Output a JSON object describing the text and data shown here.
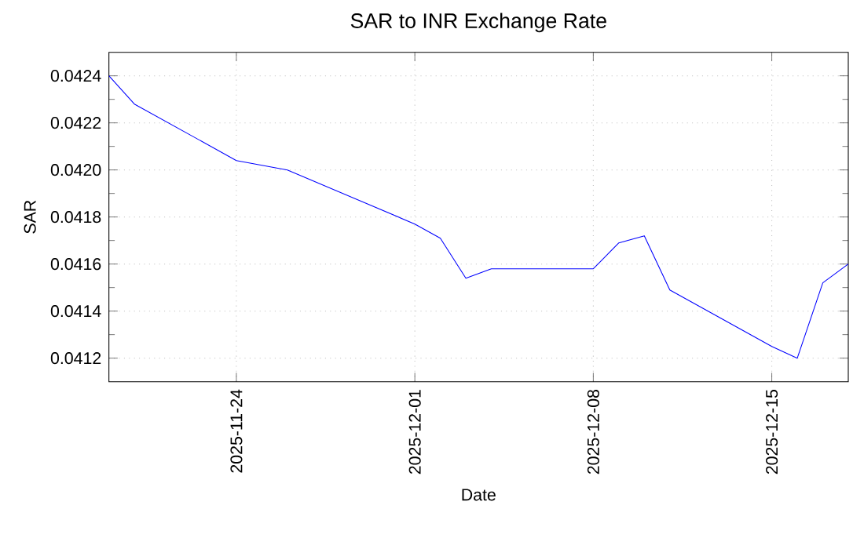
{
  "chart_data": {
    "type": "line",
    "title": "SAR to INR Exchange Rate",
    "xlabel": "Date",
    "ylabel": "SAR",
    "x": [
      "2025-11-19",
      "2025-11-20",
      "2025-11-24",
      "2025-11-26",
      "2025-12-01",
      "2025-12-02",
      "2025-12-03",
      "2025-12-04",
      "2025-12-08",
      "2025-12-09",
      "2025-12-10",
      "2025-12-11",
      "2025-12-15",
      "2025-12-16",
      "2025-12-17",
      "2025-12-18"
    ],
    "series": [
      {
        "color": "#0000ff",
        "values": [
          0.0424,
          0.04228,
          0.04204,
          0.042,
          0.04177,
          0.04171,
          0.04154,
          0.04158,
          0.04158,
          0.04169,
          0.04172,
          0.04149,
          0.04125,
          0.0412,
          0.04152,
          0.0416
        ]
      }
    ],
    "xlim": [
      "2025-11-19",
      "2025-12-18"
    ],
    "xticks": [
      "2025-11-24",
      "2025-12-01",
      "2025-12-08",
      "2025-12-15"
    ],
    "ylim": [
      0.0411,
      0.0425
    ],
    "yticks": [
      0.0412,
      0.0414,
      0.0416,
      0.0418,
      {
        "value": 0.042,
        "label": "0.0420"
      },
      0.0422,
      0.0424
    ],
    "grid": true,
    "marker": "none",
    "line_style": "solid"
  }
}
